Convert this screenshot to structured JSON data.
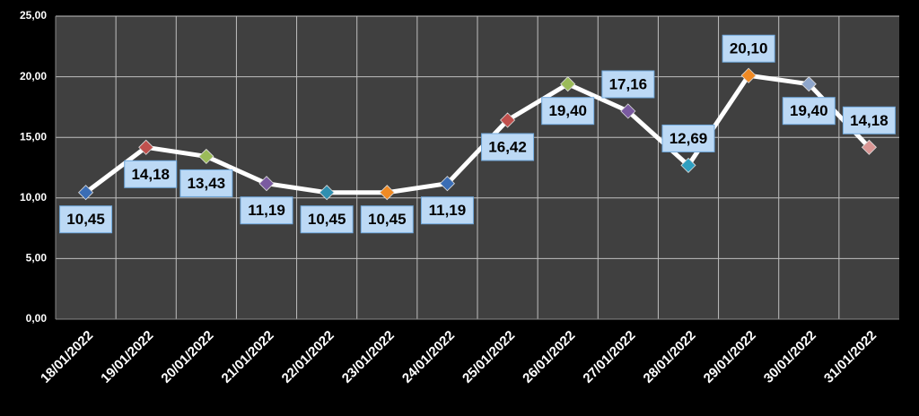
{
  "chart_data": {
    "type": "line",
    "categories": [
      "18/01/2022",
      "19/01/2022",
      "20/01/2022",
      "21/01/2022",
      "22/01/2022",
      "23/01/2022",
      "24/01/2022",
      "25/01/2022",
      "26/01/2022",
      "27/01/2022",
      "28/01/2022",
      "29/01/2022",
      "30/01/2022",
      "31/01/2022"
    ],
    "values": [
      10.45,
      14.18,
      13.43,
      11.19,
      10.45,
      10.45,
      11.19,
      16.42,
      19.4,
      17.16,
      12.69,
      20.1,
      19.4,
      14.18
    ],
    "value_labels": [
      "10,45",
      "14,18",
      "13,43",
      "11,19",
      "10,45",
      "10,45",
      "11,19",
      "16,42",
      "19,40",
      "17,16",
      "12,69",
      "20,10",
      "19,40",
      "14,18"
    ],
    "color": "#ffffff",
    "marker_colors": [
      "#3a6db5",
      "#c0504d",
      "#9bbb59",
      "#7a5aa0",
      "#2f8fb0",
      "#f08a24",
      "#3a6db5",
      "#c0504d",
      "#9bbb59",
      "#7a5aa0",
      "#2f9fc0",
      "#f08a24",
      "#8ea6cc",
      "#d99694"
    ],
    "ylim": [
      0,
      25
    ],
    "yticks": [
      {
        "value": 0,
        "label": "0,00"
      },
      {
        "value": 5,
        "label": "5,00"
      },
      {
        "value": 10,
        "label": "10,00"
      },
      {
        "value": 15,
        "label": "15,00"
      },
      {
        "value": 20,
        "label": "20,00"
      },
      {
        "value": 25,
        "label": "25,00"
      }
    ],
    "grid": true
  }
}
